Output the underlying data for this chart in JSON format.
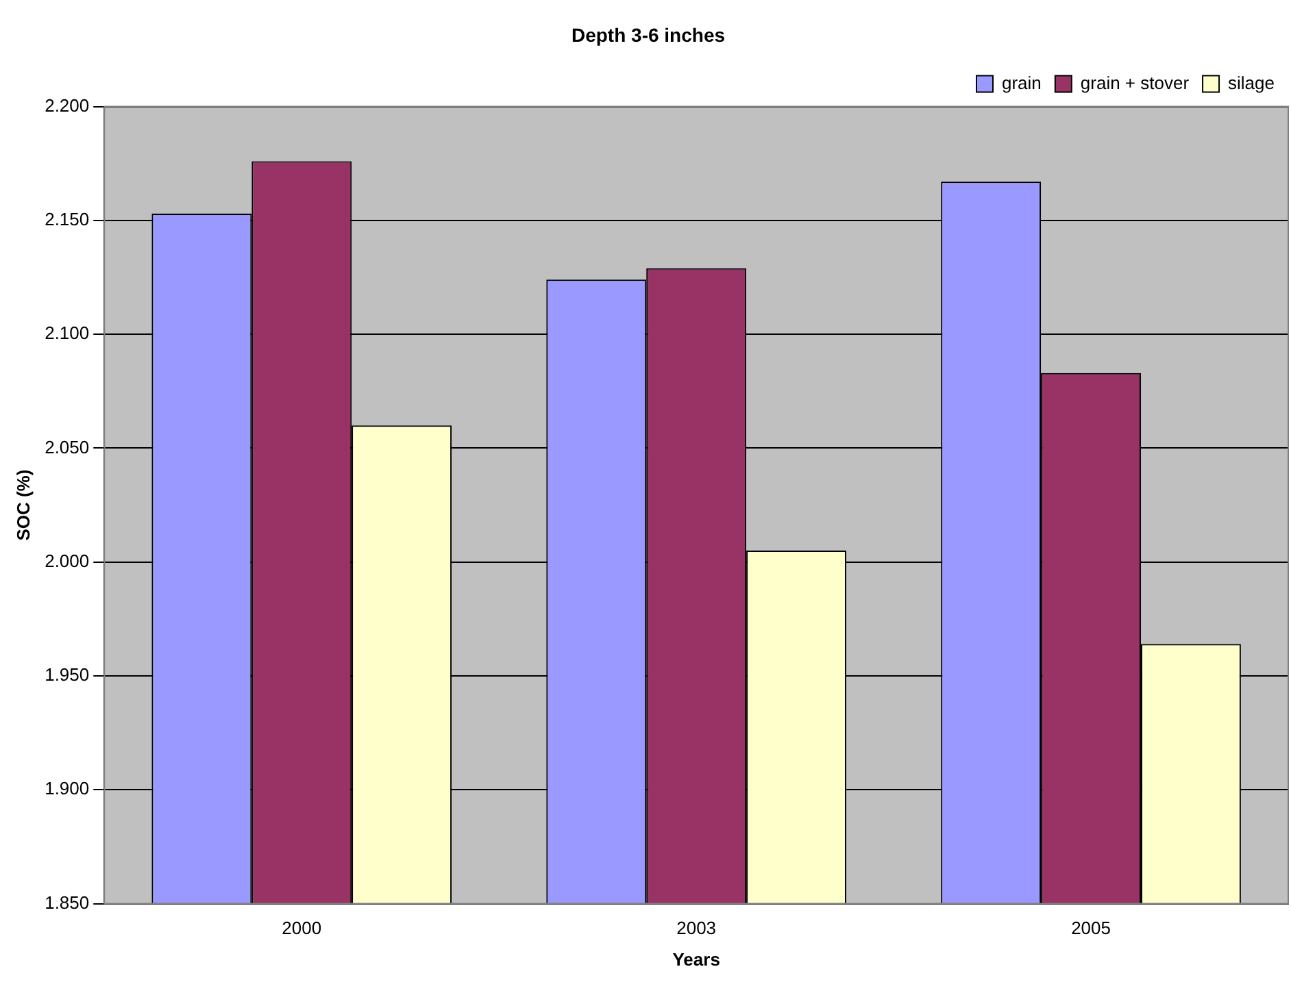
{
  "chart_data": {
    "type": "bar",
    "title": "Depth 3-6 inches",
    "xlabel": "Years",
    "ylabel": "SOC (%)",
    "categories": [
      "2000",
      "2003",
      "2005"
    ],
    "series": [
      {
        "name": "grain",
        "color": "#9999ff",
        "values": [
          2.153,
          2.124,
          2.167
        ]
      },
      {
        "name": "grain + stover",
        "color": "#993366",
        "values": [
          2.176,
          2.129,
          2.083
        ]
      },
      {
        "name": "silage",
        "color": "#ffffcc",
        "values": [
          2.06,
          2.005,
          1.964
        ]
      }
    ],
    "ylim": [
      1.85,
      2.2
    ],
    "yticks": [
      {
        "value": 1.85,
        "label": "1.850"
      },
      {
        "value": 1.9,
        "label": "1.900"
      },
      {
        "value": 1.95,
        "label": "1.950"
      },
      {
        "value": 2.0,
        "label": "2.000"
      },
      {
        "value": 2.05,
        "label": "2.050"
      },
      {
        "value": 2.1,
        "label": "2.100"
      },
      {
        "value": 2.15,
        "label": "2.150"
      },
      {
        "value": 2.2,
        "label": "2.200"
      }
    ],
    "grid": "y",
    "legend": "top right"
  }
}
